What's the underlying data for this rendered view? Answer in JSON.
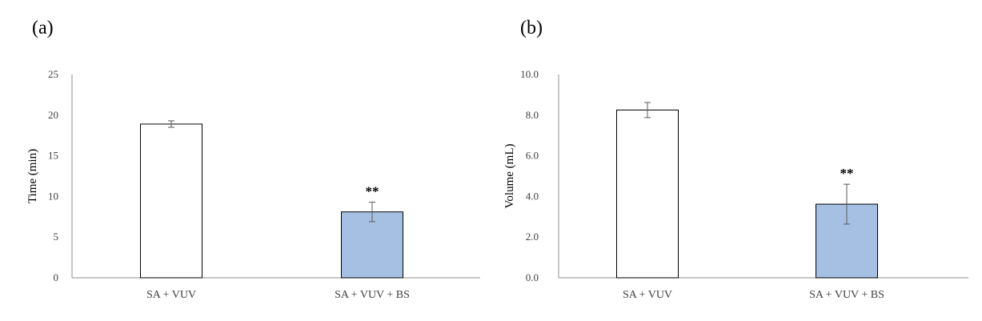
{
  "chart_data": [
    {
      "type": "bar",
      "panel_label": "(a)",
      "categories": [
        "SA + VUV",
        "SA + VUV + BS"
      ],
      "values": [
        18.9,
        8.1
      ],
      "errors": [
        0.4,
        1.2
      ],
      "annotations": [
        "",
        "**"
      ],
      "ylabel": "Time (min)",
      "yticks": [
        "0",
        "5",
        "10",
        "15",
        "20",
        "25"
      ],
      "ylim": [
        0,
        25
      ],
      "tick_step": 5,
      "grid": false,
      "bar_colors": [
        "#ffffff",
        "#a6c0e4"
      ]
    },
    {
      "type": "bar",
      "panel_label": "(b)",
      "categories": [
        "SA + VUV",
        "SA + VUV + BS"
      ],
      "values": [
        8.25,
        3.62
      ],
      "errors": [
        0.37,
        0.98
      ],
      "annotations": [
        "",
        "**"
      ],
      "ylabel": "Volume (mL)",
      "yticks": [
        "0.0",
        "2.0",
        "4.0",
        "6.0",
        "8.0",
        "10.0"
      ],
      "ylim": [
        0,
        10
      ],
      "tick_step": 2,
      "grid": false,
      "bar_colors": [
        "#ffffff",
        "#a6c0e4"
      ]
    }
  ]
}
